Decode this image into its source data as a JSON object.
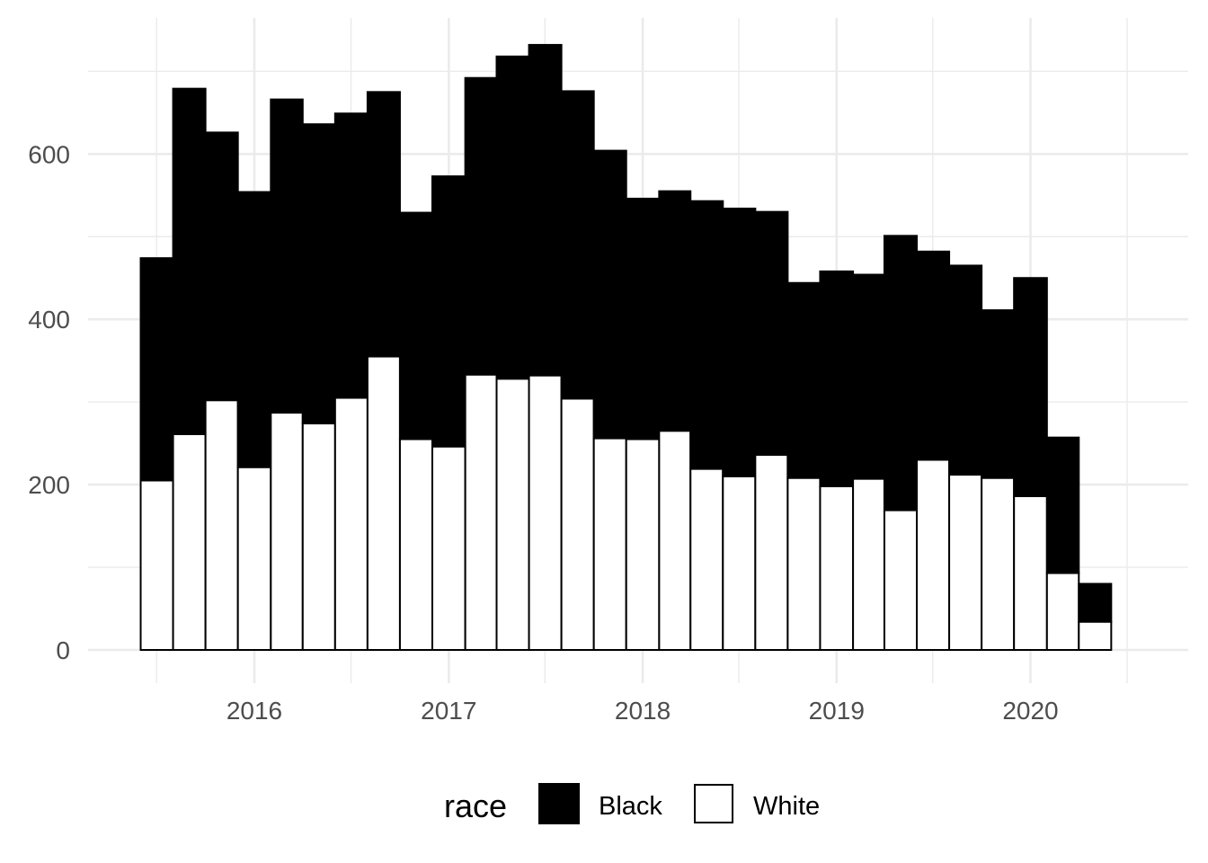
{
  "chart_data": {
    "type": "bar",
    "stacked": true,
    "x_kind": "date",
    "bin_starts": [
      "2015-06-01",
      "2015-08-01",
      "2015-10-01",
      "2015-12-01",
      "2016-02-01",
      "2016-04-01",
      "2016-06-01",
      "2016-08-01",
      "2016-10-01",
      "2016-12-01",
      "2017-02-01",
      "2017-04-01",
      "2017-06-01",
      "2017-08-01",
      "2017-10-01",
      "2017-12-01",
      "2018-02-01",
      "2018-04-01",
      "2018-06-01",
      "2018-08-01",
      "2018-10-01",
      "2018-12-01",
      "2019-02-01",
      "2019-04-01",
      "2019-06-01",
      "2019-08-01",
      "2019-10-01",
      "2019-12-01",
      "2020-02-01",
      "2020-04-01",
      "2020-06-01"
    ],
    "series": [
      {
        "name": "White",
        "fill": "#ffffff",
        "values": [
          205,
          261,
          302,
          221,
          287,
          274,
          305,
          355,
          255,
          246,
          333,
          328,
          332,
          304,
          256,
          255,
          265,
          219,
          210,
          236,
          208,
          198,
          207,
          169,
          230,
          212,
          208,
          186,
          93,
          34
        ]
      },
      {
        "name": "Black",
        "fill": "#000000",
        "values": [
          269,
          418,
          324,
          333,
          379,
          362,
          344,
          320,
          274,
          327,
          359,
          390,
          400,
          372,
          348,
          291,
          290,
          324,
          324,
          294,
          236,
          260,
          247,
          332,
          252,
          253,
          203,
          264,
          164,
          46
        ]
      }
    ],
    "totals": [
      474,
      679,
      626,
      554,
      666,
      636,
      649,
      675,
      529,
      573,
      692,
      718,
      732,
      676,
      604,
      546,
      555,
      543,
      534,
      530,
      444,
      458,
      454,
      501,
      482,
      465,
      411,
      450,
      257,
      80
    ],
    "x_ticks": [
      "2016",
      "2017",
      "2018",
      "2019",
      "2020"
    ],
    "y_ticks": [
      "0",
      "200",
      "400",
      "600"
    ],
    "ylim": [
      0,
      760
    ],
    "title": "",
    "xlabel": "",
    "ylabel": "",
    "grid": true,
    "legend": {
      "title": "race",
      "position": "bottom",
      "entries": [
        "Black",
        "White"
      ]
    },
    "colors": {
      "grid": "#ebebeb",
      "tick_text": "#4d4d4d",
      "bar_outline": "#000000"
    }
  }
}
